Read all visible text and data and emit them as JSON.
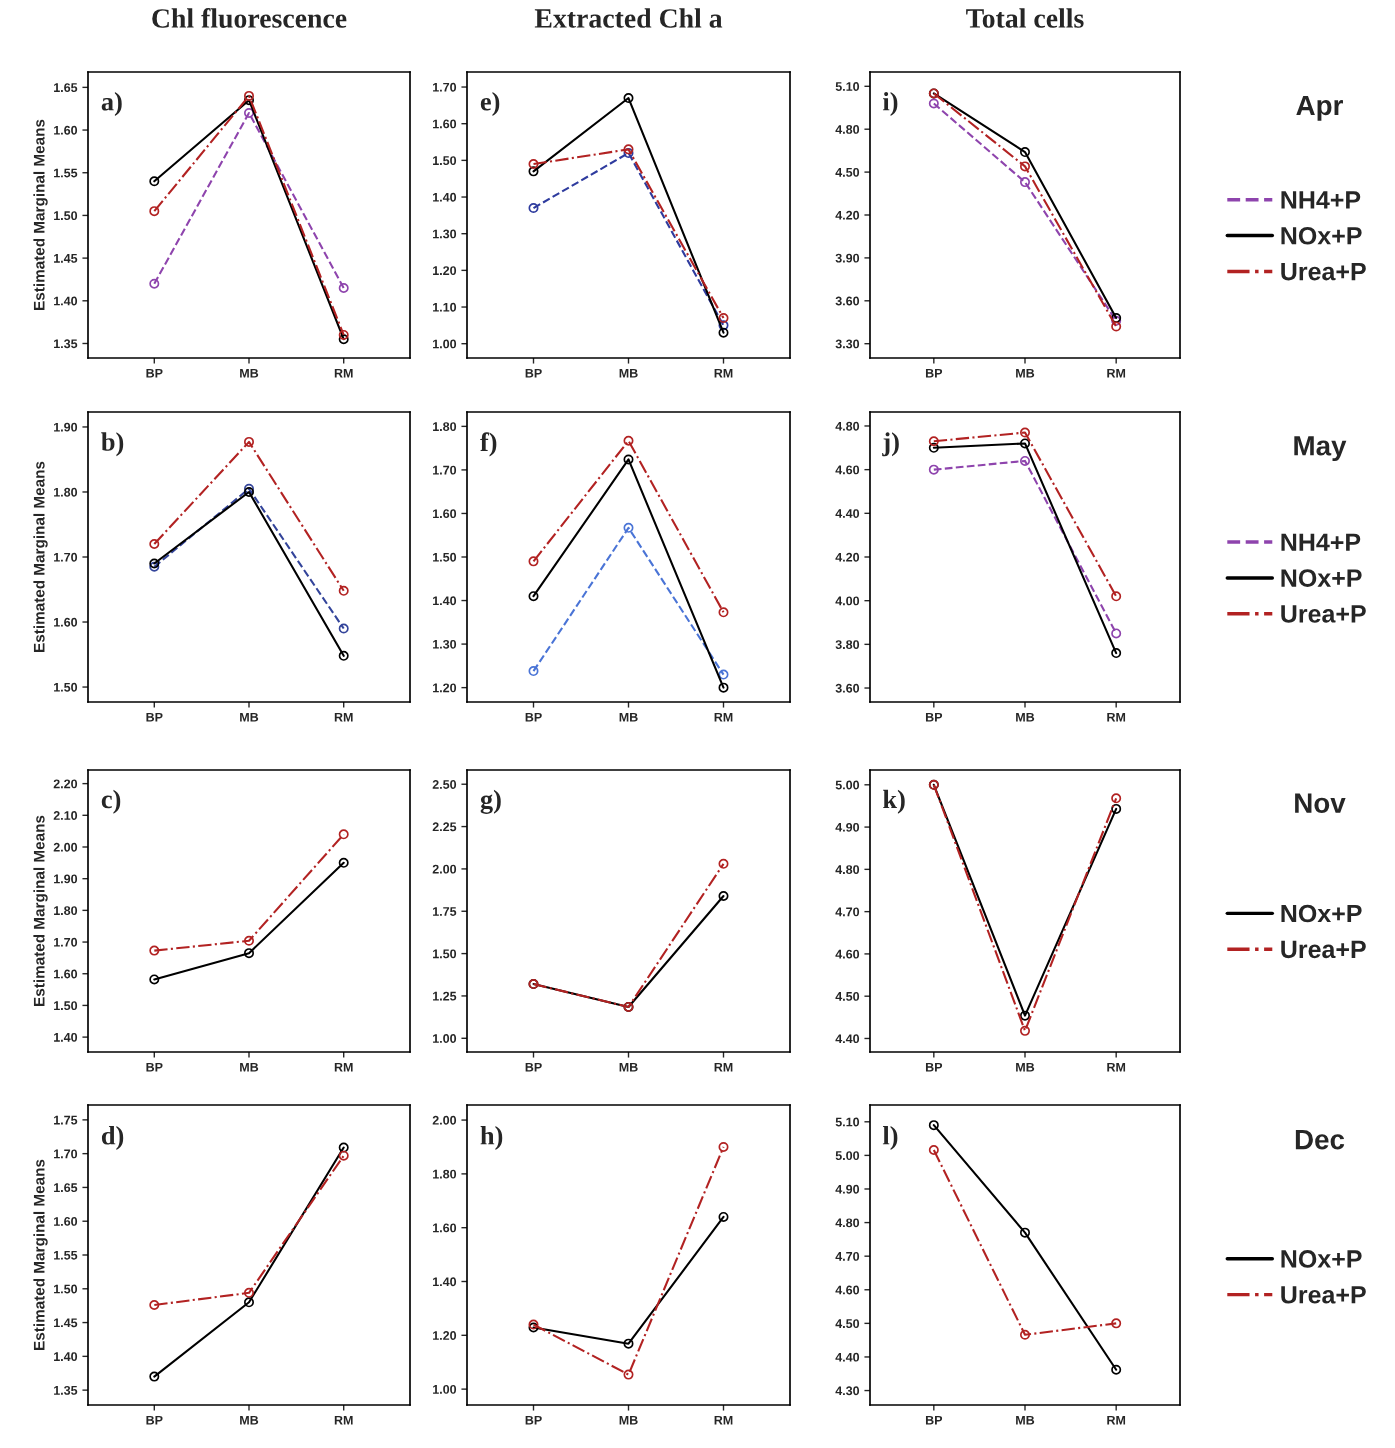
{
  "chart_data": [
    {
      "type": "line",
      "title": "Chl fluorescence",
      "ylabel": "Estimated Marginal Means",
      "annotations": [
        "a)"
      ],
      "categories": [
        "BP",
        "MB",
        "RM"
      ],
      "marker": "circle",
      "ylim": [
        1.333,
        1.668
      ],
      "yticks": [
        {
          "value": 1.35,
          "label": "1.35"
        },
        {
          "value": 1.4,
          "label": "1.40"
        },
        {
          "value": 1.45,
          "label": "1.45"
        },
        {
          "value": 1.5,
          "label": "1.50"
        },
        {
          "value": 1.55,
          "label": "1.55"
        },
        {
          "value": 1.6,
          "label": "1.60"
        },
        {
          "value": 1.65,
          "label": "1.65"
        }
      ],
      "series": [
        {
          "color": "#8e44ad",
          "line_style": "dashed",
          "values": [
            1.42,
            1.62,
            1.415
          ]
        },
        {
          "color": "#000000",
          "line_style": "solid",
          "values": [
            1.54,
            1.635,
            1.355
          ]
        },
        {
          "color": "#b22222",
          "line_style": "dashdot",
          "values": [
            1.505,
            1.64,
            1.36
          ]
        }
      ]
    },
    {
      "type": "line",
      "title": "Extracted Chl a",
      "annotations": [
        "e)"
      ],
      "categories": [
        "BP",
        "MB",
        "RM"
      ],
      "marker": "circle",
      "ylim": [
        0.961,
        1.741
      ],
      "yticks": [
        {
          "value": 1.0,
          "label": "1.00"
        },
        {
          "value": 1.1,
          "label": "1.10"
        },
        {
          "value": 1.2,
          "label": "1.20"
        },
        {
          "value": 1.3,
          "label": "1.30"
        },
        {
          "value": 1.4,
          "label": "1.40"
        },
        {
          "value": 1.5,
          "label": "1.50"
        },
        {
          "value": 1.6,
          "label": "1.60"
        },
        {
          "value": 1.7,
          "label": "1.70"
        }
      ],
      "series": [
        {
          "color": "#2e3b9e",
          "line_style": "dashed",
          "values": [
            1.37,
            1.52,
            1.05
          ]
        },
        {
          "color": "#000000",
          "line_style": "solid",
          "values": [
            1.47,
            1.67,
            1.03
          ]
        },
        {
          "color": "#b22222",
          "line_style": "dashdot",
          "values": [
            1.49,
            1.53,
            1.07
          ]
        }
      ]
    },
    {
      "type": "line",
      "title": "Total cells",
      "annotations": [
        "i)",
        "Apr"
      ],
      "categories": [
        "BP",
        "MB",
        "RM"
      ],
      "marker": "circle",
      "legend": "right",
      "ylim": [
        3.2,
        5.2
      ],
      "yticks": [
        {
          "value": 3.3,
          "label": "3.30"
        },
        {
          "value": 3.6,
          "label": "3.60"
        },
        {
          "value": 3.9,
          "label": "3.90"
        },
        {
          "value": 4.2,
          "label": "4.20"
        },
        {
          "value": 4.5,
          "label": "4.50"
        },
        {
          "value": 4.8,
          "label": "4.80"
        },
        {
          "value": 5.1,
          "label": "5.10"
        }
      ],
      "series": [
        {
          "name": "NH4+P",
          "color": "#8e44ad",
          "line_style": "dashed",
          "values": [
            4.98,
            4.43,
            3.46
          ]
        },
        {
          "name": "NOx+P",
          "color": "#000000",
          "line_style": "solid",
          "values": [
            5.05,
            4.64,
            3.48
          ]
        },
        {
          "name": "Urea+P",
          "color": "#b22222",
          "line_style": "dashdot",
          "values": [
            5.05,
            4.54,
            3.42
          ]
        }
      ]
    },
    {
      "type": "line",
      "ylabel": "Estimated Marginal Means",
      "annotations": [
        "b)"
      ],
      "categories": [
        "BP",
        "MB",
        "RM"
      ],
      "marker": "circle",
      "ylim": [
        1.477,
        1.923
      ],
      "yticks": [
        {
          "value": 1.5,
          "label": "1.50"
        },
        {
          "value": 1.6,
          "label": "1.60"
        },
        {
          "value": 1.7,
          "label": "1.70"
        },
        {
          "value": 1.8,
          "label": "1.80"
        },
        {
          "value": 1.9,
          "label": "1.90"
        }
      ],
      "series": [
        {
          "color": "#33449a",
          "line_style": "dashed",
          "values": [
            1.685,
            1.805,
            1.59
          ]
        },
        {
          "color": "#000000",
          "line_style": "solid",
          "values": [
            1.69,
            1.8,
            1.548
          ]
        },
        {
          "color": "#b22222",
          "line_style": "dashdot",
          "values": [
            1.72,
            1.877,
            1.648
          ]
        }
      ]
    },
    {
      "type": "line",
      "annotations": [
        "f)"
      ],
      "categories": [
        "BP",
        "MB",
        "RM"
      ],
      "marker": "circle",
      "ylim": [
        1.167,
        1.833
      ],
      "yticks": [
        {
          "value": 1.2,
          "label": "1.20"
        },
        {
          "value": 1.3,
          "label": "1.30"
        },
        {
          "value": 1.4,
          "label": "1.40"
        },
        {
          "value": 1.5,
          "label": "1.50"
        },
        {
          "value": 1.6,
          "label": "1.60"
        },
        {
          "value": 1.7,
          "label": "1.70"
        },
        {
          "value": 1.8,
          "label": "1.80"
        }
      ],
      "series": [
        {
          "color": "#4a74d6",
          "line_style": "dashed",
          "values": [
            1.238,
            1.567,
            1.23
          ]
        },
        {
          "color": "#000000",
          "line_style": "solid",
          "values": [
            1.41,
            1.724,
            1.2
          ]
        },
        {
          "color": "#b22222",
          "line_style": "dashdot",
          "values": [
            1.49,
            1.767,
            1.373
          ]
        }
      ]
    },
    {
      "type": "line",
      "annotations": [
        "j)",
        "May"
      ],
      "categories": [
        "BP",
        "MB",
        "RM"
      ],
      "marker": "circle",
      "legend": "right",
      "ylim": [
        3.536,
        4.864
      ],
      "yticks": [
        {
          "value": 3.6,
          "label": "3.60"
        },
        {
          "value": 3.8,
          "label": "3.80"
        },
        {
          "value": 4.0,
          "label": "4.00"
        },
        {
          "value": 4.2,
          "label": "4.20"
        },
        {
          "value": 4.4,
          "label": "4.40"
        },
        {
          "value": 4.6,
          "label": "4.60"
        },
        {
          "value": 4.8,
          "label": "4.80"
        }
      ],
      "series": [
        {
          "name": "NH4+P",
          "color": "#8e44ad",
          "line_style": "dashed",
          "values": [
            4.6,
            4.64,
            3.85
          ]
        },
        {
          "name": "NOx+P",
          "color": "#000000",
          "line_style": "solid",
          "values": [
            4.7,
            4.72,
            3.76
          ]
        },
        {
          "name": "Urea+P",
          "color": "#b22222",
          "line_style": "dashdot",
          "values": [
            4.73,
            4.77,
            4.02
          ]
        }
      ]
    },
    {
      "type": "line",
      "ylabel": "Estimated Marginal Means",
      "annotations": [
        "c)"
      ],
      "categories": [
        "BP",
        "MB",
        "RM"
      ],
      "marker": "circle",
      "ylim": [
        1.353,
        2.243
      ],
      "yticks": [
        {
          "value": 1.4,
          "label": "1.40"
        },
        {
          "value": 1.5,
          "label": "1.50"
        },
        {
          "value": 1.6,
          "label": "1.60"
        },
        {
          "value": 1.7,
          "label": "1.70"
        },
        {
          "value": 1.8,
          "label": "1.80"
        },
        {
          "value": 1.9,
          "label": "1.90"
        },
        {
          "value": 2.0,
          "label": "2.00"
        },
        {
          "value": 2.1,
          "label": "2.10"
        },
        {
          "value": 2.2,
          "label": "2.20"
        }
      ],
      "series": [
        {
          "color": "#000000",
          "line_style": "solid",
          "values": [
            1.582,
            1.665,
            1.95
          ]
        },
        {
          "color": "#b22222",
          "line_style": "dashdot",
          "values": [
            1.673,
            1.704,
            2.04
          ]
        }
      ]
    },
    {
      "type": "line",
      "annotations": [
        "g)"
      ],
      "categories": [
        "BP",
        "MB",
        "RM"
      ],
      "marker": "circle",
      "ylim": [
        0.919,
        2.584
      ],
      "yticks": [
        {
          "value": 1.0,
          "label": "1.00"
        },
        {
          "value": 1.25,
          "label": "1.25"
        },
        {
          "value": 1.5,
          "label": "1.50"
        },
        {
          "value": 1.75,
          "label": "1.75"
        },
        {
          "value": 2.0,
          "label": "2.00"
        },
        {
          "value": 2.25,
          "label": "2.25"
        },
        {
          "value": 2.5,
          "label": "2.50"
        }
      ],
      "series": [
        {
          "color": "#000000",
          "line_style": "solid",
          "values": [
            1.32,
            1.185,
            1.84
          ]
        },
        {
          "color": "#b22222",
          "line_style": "dashdot",
          "values": [
            1.32,
            1.185,
            2.03
          ]
        }
      ]
    },
    {
      "type": "line",
      "annotations": [
        "k)",
        "Nov"
      ],
      "categories": [
        "BP",
        "MB",
        "RM"
      ],
      "marker": "circle",
      "legend": "right",
      "ylim": [
        4.368,
        5.035
      ],
      "yticks": [
        {
          "value": 4.4,
          "label": "4.40"
        },
        {
          "value": 4.5,
          "label": "4.50"
        },
        {
          "value": 4.6,
          "label": "4.60"
        },
        {
          "value": 4.7,
          "label": "4.70"
        },
        {
          "value": 4.8,
          "label": "4.80"
        },
        {
          "value": 4.9,
          "label": "4.90"
        },
        {
          "value": 5.0,
          "label": "5.00"
        }
      ],
      "series": [
        {
          "name": "NOx+P",
          "color": "#000000",
          "line_style": "solid",
          "values": [
            5.0,
            4.454,
            4.943
          ]
        },
        {
          "name": "Urea+P",
          "color": "#b22222",
          "line_style": "dashdot",
          "values": [
            5.0,
            4.418,
            4.968
          ]
        }
      ]
    },
    {
      "type": "line",
      "ylabel": "Estimated Marginal Means",
      "annotations": [
        "d)"
      ],
      "categories": [
        "BP",
        "MB",
        "RM"
      ],
      "marker": "circle",
      "ylim": [
        1.328,
        1.772
      ],
      "yticks": [
        {
          "value": 1.35,
          "label": "1.35"
        },
        {
          "value": 1.4,
          "label": "1.40"
        },
        {
          "value": 1.45,
          "label": "1.45"
        },
        {
          "value": 1.5,
          "label": "1.50"
        },
        {
          "value": 1.55,
          "label": "1.55"
        },
        {
          "value": 1.6,
          "label": "1.60"
        },
        {
          "value": 1.65,
          "label": "1.65"
        },
        {
          "value": 1.7,
          "label": "1.70"
        },
        {
          "value": 1.75,
          "label": "1.75"
        }
      ],
      "series": [
        {
          "color": "#000000",
          "line_style": "solid",
          "values": [
            1.37,
            1.48,
            1.709
          ]
        },
        {
          "color": "#b22222",
          "line_style": "dashdot",
          "values": [
            1.476,
            1.494,
            1.697
          ]
        }
      ]
    },
    {
      "type": "line",
      "annotations": [
        "h)"
      ],
      "categories": [
        "BP",
        "MB",
        "RM"
      ],
      "marker": "circle",
      "ylim": [
        0.941,
        2.056
      ],
      "yticks": [
        {
          "value": 1.0,
          "label": "1.00"
        },
        {
          "value": 1.2,
          "label": "1.20"
        },
        {
          "value": 1.4,
          "label": "1.40"
        },
        {
          "value": 1.6,
          "label": "1.60"
        },
        {
          "value": 1.8,
          "label": "1.80"
        },
        {
          "value": 2.0,
          "label": "2.00"
        }
      ],
      "series": [
        {
          "color": "#000000",
          "line_style": "solid",
          "values": [
            1.229,
            1.169,
            1.64
          ]
        },
        {
          "color": "#b22222",
          "line_style": "dashdot",
          "values": [
            1.24,
            1.054,
            1.9
          ]
        }
      ]
    },
    {
      "type": "line",
      "annotations": [
        "l)",
        "Dec"
      ],
      "categories": [
        "BP",
        "MB",
        "RM"
      ],
      "marker": "circle",
      "legend": "right",
      "ylim": [
        4.257,
        5.15
      ],
      "yticks": [
        {
          "value": 4.3,
          "label": "4.30"
        },
        {
          "value": 4.4,
          "label": "4.40"
        },
        {
          "value": 4.5,
          "label": "4.50"
        },
        {
          "value": 4.6,
          "label": "4.60"
        },
        {
          "value": 4.7,
          "label": "4.70"
        },
        {
          "value": 4.8,
          "label": "4.80"
        },
        {
          "value": 4.9,
          "label": "4.90"
        },
        {
          "value": 5.0,
          "label": "5.00"
        },
        {
          "value": 5.1,
          "label": "5.10"
        }
      ],
      "series": [
        {
          "name": "NOx+P",
          "color": "#000000",
          "line_style": "solid",
          "values": [
            5.09,
            4.77,
            4.362
          ]
        },
        {
          "name": "Urea+P",
          "color": "#b22222",
          "line_style": "dashdot",
          "values": [
            5.016,
            4.466,
            4.5
          ]
        }
      ]
    }
  ]
}
